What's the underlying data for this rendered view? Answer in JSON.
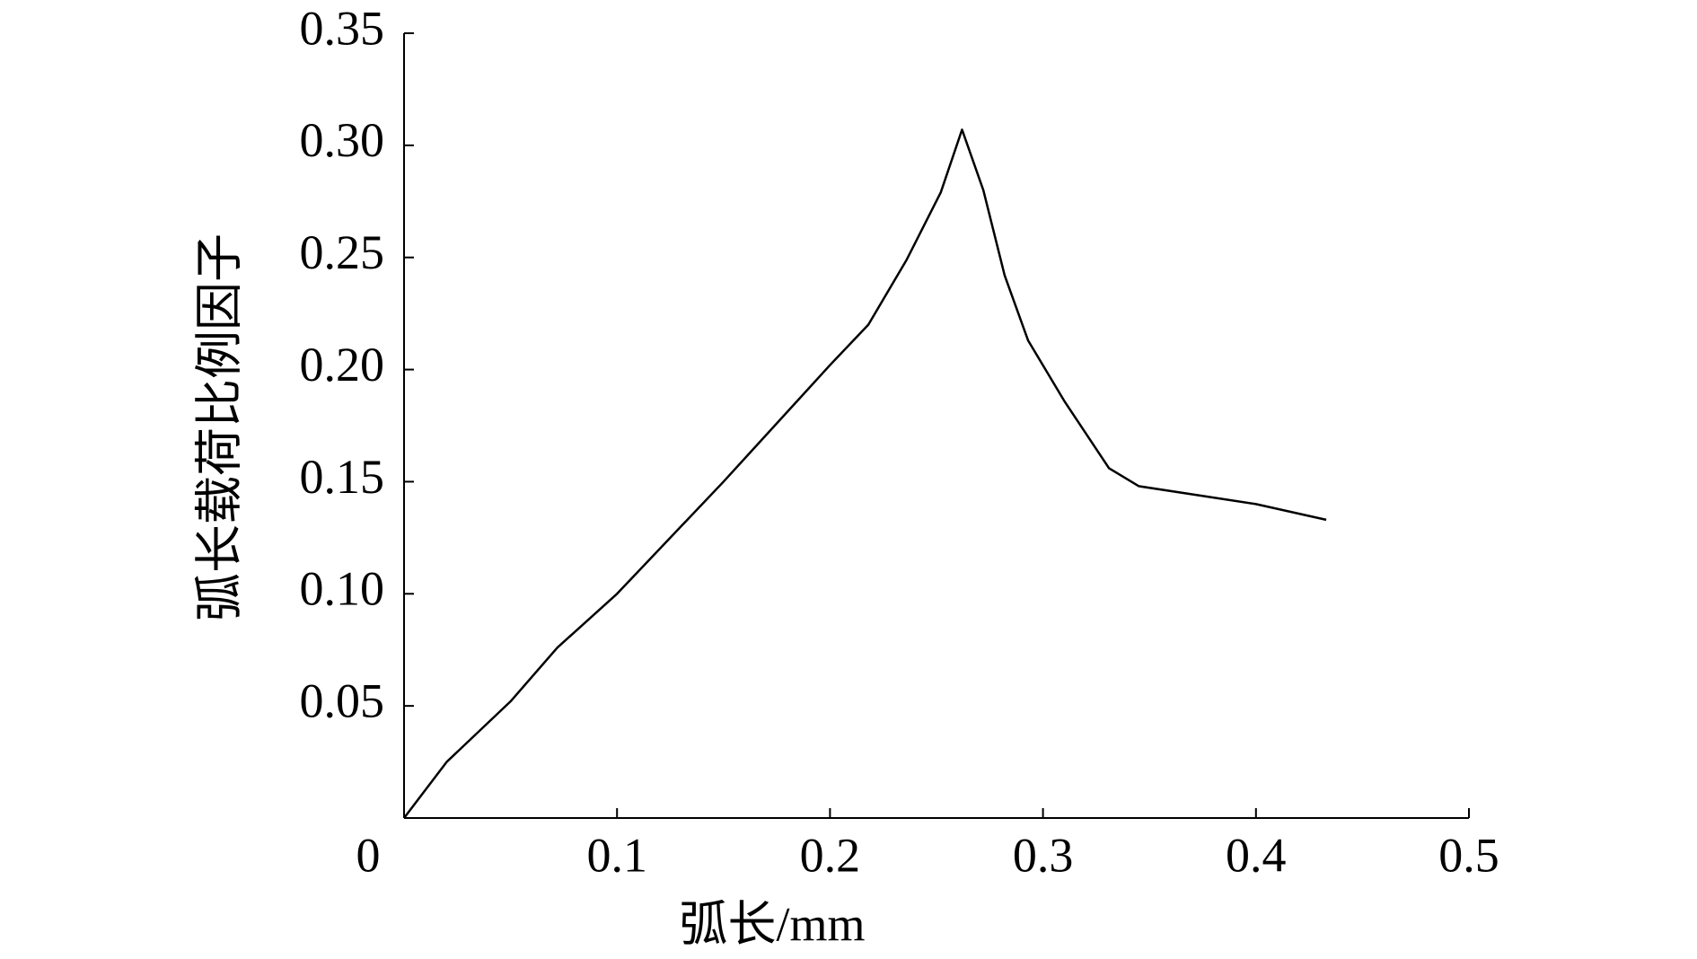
{
  "chart_data": {
    "type": "line",
    "x_label": "弧长/mm",
    "y_label": "弧长载荷比例因子",
    "x": [
      0,
      0.02,
      0.05,
      0.072,
      0.1,
      0.15,
      0.2,
      0.218,
      0.236,
      0.252,
      0.262,
      0.272,
      0.282,
      0.293,
      0.31,
      0.331,
      0.345,
      0.4,
      0.433
    ],
    "series": [
      {
        "color": "#000000",
        "values": [
          0,
          0.025,
          0.052,
          0.076,
          0.1,
          0.15,
          0.202,
          0.22,
          0.249,
          0.279,
          0.307,
          0.28,
          0.242,
          0.213,
          0.186,
          0.156,
          0.148,
          0.14,
          0.133
        ]
      }
    ],
    "xlim": [
      0,
      0.5
    ],
    "ylim": [
      0,
      0.35
    ],
    "xticks": [
      0,
      0.1,
      0.2,
      0.3,
      0.4,
      0.5
    ],
    "yticks": [
      0.05,
      {
        "value": 0.1,
        "label": "0.10"
      },
      0.15,
      {
        "value": 0.2,
        "label": "0.20"
      },
      0.25,
      {
        "value": 0.3,
        "label": "0.30"
      },
      0.35
    ],
    "grid": false
  }
}
